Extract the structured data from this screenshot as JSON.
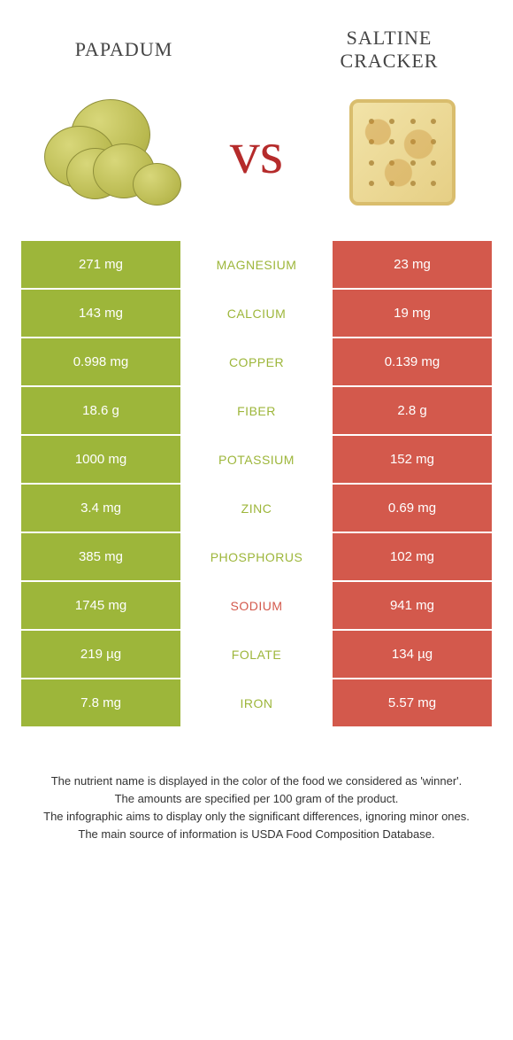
{
  "foods": {
    "left": {
      "name": "Papadum",
      "color": "#9db63a"
    },
    "right": {
      "name": "Saltine cracker",
      "color": "#d3594c"
    }
  },
  "vs_label": "vs",
  "rows": [
    {
      "nutrient": "Magnesium",
      "left": "271 mg",
      "right": "23 mg",
      "winner": "left"
    },
    {
      "nutrient": "Calcium",
      "left": "143 mg",
      "right": "19 mg",
      "winner": "left"
    },
    {
      "nutrient": "Copper",
      "left": "0.998 mg",
      "right": "0.139 mg",
      "winner": "left"
    },
    {
      "nutrient": "Fiber",
      "left": "18.6 g",
      "right": "2.8 g",
      "winner": "left"
    },
    {
      "nutrient": "Potassium",
      "left": "1000 mg",
      "right": "152 mg",
      "winner": "left"
    },
    {
      "nutrient": "Zinc",
      "left": "3.4 mg",
      "right": "0.69 mg",
      "winner": "left"
    },
    {
      "nutrient": "Phosphorus",
      "left": "385 mg",
      "right": "102 mg",
      "winner": "left"
    },
    {
      "nutrient": "Sodium",
      "left": "1745 mg",
      "right": "941 mg",
      "winner": "right"
    },
    {
      "nutrient": "Folate",
      "left": "219 µg",
      "right": "134 µg",
      "winner": "left"
    },
    {
      "nutrient": "Iron",
      "left": "7.8 mg",
      "right": "5.57 mg",
      "winner": "left"
    }
  ],
  "footer": [
    "The nutrient name is displayed in the color of the food we considered as 'winner'.",
    "The amounts are specified per 100 gram of the product.",
    "The infographic aims to display only the significant differences, ignoring minor ones.",
    "The main source of information is USDA Food Composition Database."
  ],
  "style": {
    "title_fontsize": 22,
    "row_fontsize": 15,
    "nutrient_fontsize": 14,
    "footer_fontsize": 13,
    "background": "#ffffff"
  }
}
